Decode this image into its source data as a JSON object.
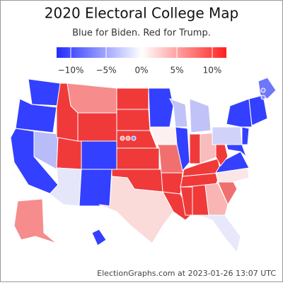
{
  "title": "2020 Electoral College Map",
  "subtitle": "Blue for Biden. Red for Trump.",
  "legend": {
    "xlim": [
      -12,
      12
    ],
    "ticks": [
      {
        "value": -10,
        "label": "−10%"
      },
      {
        "value": -5,
        "label": "−5%"
      },
      {
        "value": 0,
        "label": "0%"
      },
      {
        "value": 5,
        "label": "5%"
      },
      {
        "value": 10,
        "label": "10%"
      }
    ],
    "colors": [
      "#1f2bff",
      "#ffffff",
      "#ff2020"
    ]
  },
  "footer": "ElectionGraphs.com at 2023-01-26 13:07 UTC"
}
